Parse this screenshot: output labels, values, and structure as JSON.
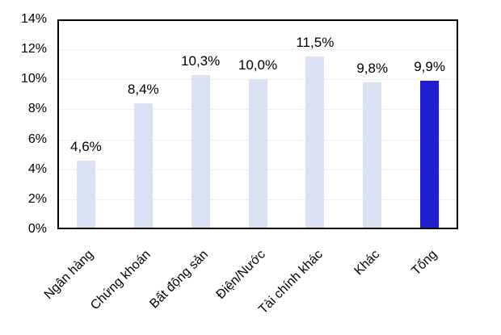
{
  "chart_data": {
    "type": "bar",
    "title": "",
    "xlabel": "",
    "ylabel": "",
    "categories": [
      "Ngân hàng",
      "Chứng khoán",
      "Bất động sản",
      "Điện/Nước",
      "Tài chính khác",
      "Khác",
      "Tổng"
    ],
    "values": [
      4.6,
      8.4,
      10.3,
      10.0,
      11.5,
      9.8,
      9.9
    ],
    "value_labels": [
      "4,6%",
      "8,4%",
      "10,3%",
      "10,0%",
      "11,5%",
      "9,8%",
      "9,9%"
    ],
    "ylim": [
      0,
      14
    ],
    "ytick_step": 2,
    "ytick_labels": [
      "0%",
      "2%",
      "4%",
      "6%",
      "8%",
      "10%",
      "12%",
      "14%"
    ],
    "grid": true,
    "legend": false,
    "colors": {
      "bar_default": "#d9e1f2",
      "bar_highlight": "#2020d0",
      "gridline": "#efefef",
      "plot_border": "#000000",
      "text": "#000000",
      "background": "#ffffff"
    },
    "highlight_index": 6
  }
}
